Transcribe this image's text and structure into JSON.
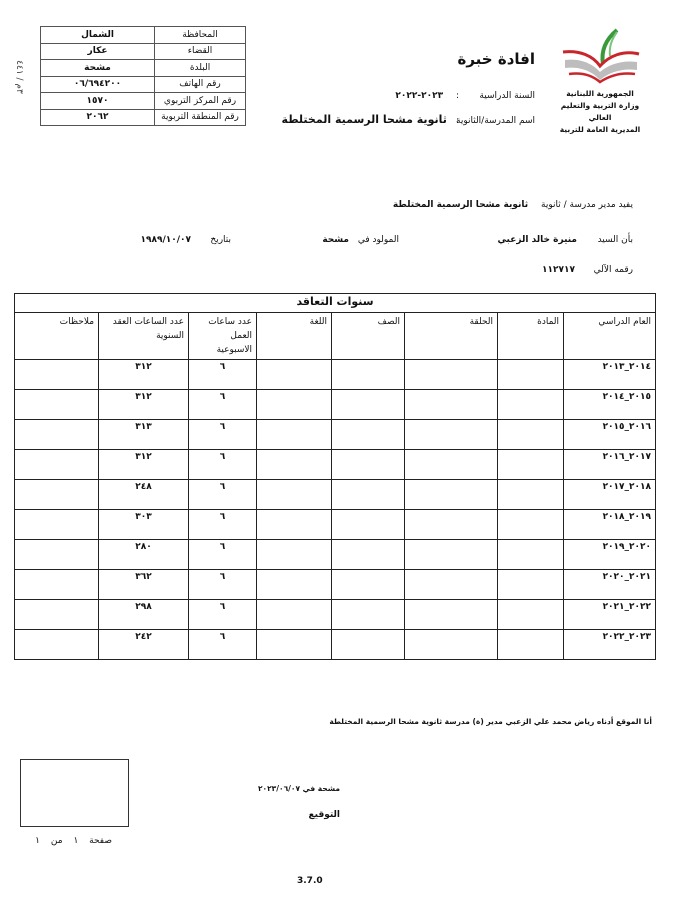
{
  "header": {
    "title": "افادة خبرة",
    "logo_lines": [
      "الجمهورية اللبنانية",
      "وزارة التربية والتعليم العالي",
      "المديرية العامة للتربية"
    ],
    "school_year_label": "السنة الدراسية",
    "school_year_value": "٢٠٢٣-٢٠٢٢",
    "school_name_label": "اسم المدرسة/الثانوية",
    "school_name_value": "ثانوية مشحا الرسمية المختلطة",
    "side_code": "٣م / ٤٤١"
  },
  "info_table": [
    {
      "label": "المحافظة",
      "value": "الشمال"
    },
    {
      "label": "القضاء",
      "value": "عكار"
    },
    {
      "label": "البلدة",
      "value": "مشحة"
    },
    {
      "label": "رقم الهاتف",
      "value": "٠٦/٦٩٤٢٠٠"
    },
    {
      "label": "رقم المركز التربوي",
      "value": "١٥٧٠"
    },
    {
      "label": "رقم المنطقة التربوية",
      "value": "٢٠٦٢"
    }
  ],
  "body": {
    "director_label": "يفيد مدير مدرسة / ثانوية",
    "director_school": "ثانوية مشحا الرسمية المختلطة",
    "person_label": "بأن السيد",
    "person_name": "منيرة خالد الزعبي",
    "born_label": "المولود في",
    "born_place": "مشحة",
    "date_label": "بتاريخ",
    "birth_date": "١٩٨٩/١٠/٠٧",
    "id_label": "رقمه الآلي",
    "id_value": "١١٢٧١٧"
  },
  "contract_table": {
    "title": "سنوات التعاقد",
    "columns": [
      "العام الدراسي",
      "المادة",
      "الحلقة",
      "الصف",
      "اللغة",
      "عدد ساعات العمل الاسبوعية",
      "عدد الساعات العقد السنوية",
      "ملاحظات"
    ],
    "rows": [
      {
        "year": "٢٠١٤_٢٠١٣",
        "weekly": "٦",
        "annual": "٣١٢"
      },
      {
        "year": "٢٠١٥_٢٠١٤",
        "weekly": "٦",
        "annual": "٣١٢"
      },
      {
        "year": "٢٠١٦_٢٠١٥",
        "weekly": "٦",
        "annual": "٣١٣"
      },
      {
        "year": "٢٠١٧_٢٠١٦",
        "weekly": "٦",
        "annual": "٣١٢"
      },
      {
        "year": "٢٠١٨_٢٠١٧",
        "weekly": "٦",
        "annual": "٢٤٨"
      },
      {
        "year": "٢٠١٩_٢٠١٨",
        "weekly": "٦",
        "annual": "٣٠٣"
      },
      {
        "year": "٢٠٢٠_٢٠١٩",
        "weekly": "٦",
        "annual": "٢٨٠"
      },
      {
        "year": "٢٠٢١_٢٠٢٠",
        "weekly": "٦",
        "annual": "٣٦٢"
      },
      {
        "year": "٢٠٢٢_٢٠٢١",
        "weekly": "٦",
        "annual": "٢٩٨"
      },
      {
        "year": "٢٠٢٣_٢٠٢٢",
        "weekly": "٦",
        "annual": "٢٤٢"
      }
    ]
  },
  "footer": {
    "declaration": "أنا الموقع أدناه رياض محمد علي الزعبي مدير (ة) مدرسة ثانوية مشحا الرسمية المختلطة",
    "place_date": "مشحة في ٢٠٢٣/٠٦/٠٧",
    "signature_label": "التوقيع",
    "page_label": "صفحة",
    "page_num": "١",
    "page_of": "من",
    "page_total": "١",
    "version": "3.7.0"
  }
}
